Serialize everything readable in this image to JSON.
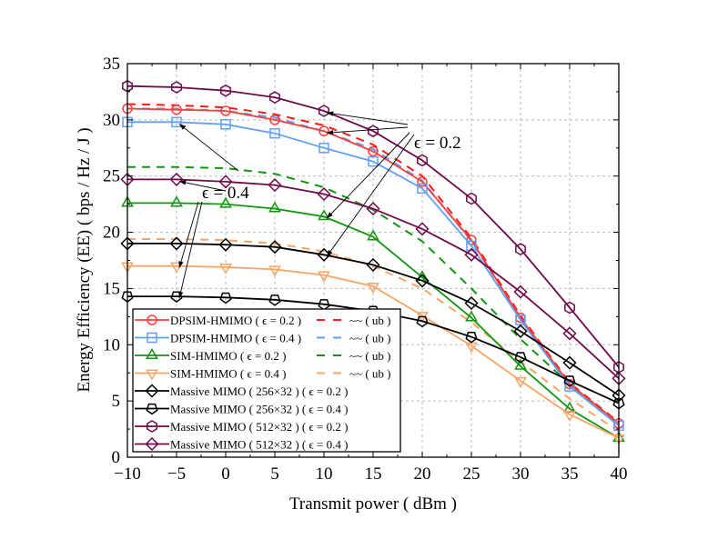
{
  "chart_data": {
    "type": "line",
    "xlabel": "Transmit power ( dBm )",
    "ylabel": "Energy Efficiency (EE) ( bps / Hz / J )",
    "xlim": [
      -10,
      40
    ],
    "ylim": [
      0,
      35
    ],
    "xticks": [
      -10,
      -5,
      0,
      5,
      10,
      15,
      20,
      25,
      30,
      35,
      40
    ],
    "yticks": [
      0,
      5,
      10,
      15,
      20,
      25,
      30,
      35
    ],
    "grid": true,
    "legend_position": "bottom-left",
    "x": [
      -10,
      -5,
      0,
      5,
      10,
      15,
      20,
      25,
      30,
      35,
      40
    ],
    "series": [
      {
        "name": "DPSIM-HMIMO ( ϵ = 0.2 )",
        "color": "#ff3b3b",
        "marker": "circle",
        "dash": false,
        "values": [
          31.0,
          30.9,
          30.8,
          30.0,
          29.0,
          27.2,
          24.5,
          19.3,
          12.4,
          6.5,
          3.0
        ]
      },
      {
        "name": "DPSIM-HMIMO ( ϵ = 0.4 )",
        "color": "#5fa0f5",
        "marker": "square",
        "dash": false,
        "values": [
          29.8,
          29.8,
          29.6,
          28.8,
          27.5,
          26.3,
          23.9,
          18.8,
          12.2,
          6.3,
          2.8
        ]
      },
      {
        "name": "SIM-HMIMO ( ϵ = 0.2 )",
        "color": "#12960f",
        "marker": "triangle-up",
        "dash": false,
        "values": [
          22.6,
          22.6,
          22.5,
          22.1,
          21.4,
          19.6,
          16.0,
          12.4,
          8.1,
          4.3,
          1.7
        ]
      },
      {
        "name": "SIM-HMIMO ( ϵ = 0.4 )",
        "color": "#f7a565",
        "marker": "triangle-down",
        "dash": false,
        "values": [
          17.0,
          17.0,
          16.9,
          16.7,
          16.2,
          15.2,
          12.6,
          9.9,
          6.8,
          3.8,
          1.7
        ]
      },
      {
        "name": "Massive MIMO ( 256×32 ) ( ϵ = 0.2 )",
        "color": "#000000",
        "marker": "diamond",
        "dash": false,
        "values": [
          19.0,
          19.0,
          18.9,
          18.7,
          18.0,
          17.1,
          15.7,
          13.7,
          11.2,
          8.4,
          5.5
        ]
      },
      {
        "name": "Massive MIMO ( 256×32 ) ( ϵ = 0.4 )",
        "color": "#000000",
        "marker": "pentagon",
        "dash": false,
        "values": [
          14.3,
          14.3,
          14.2,
          14.0,
          13.6,
          13.0,
          12.1,
          10.7,
          8.9,
          6.8,
          4.8
        ]
      },
      {
        "name": "Massive MIMO ( 512×32 ) ( ϵ = 0.2 )",
        "color": "#6e0a4a",
        "marker": "hexagon",
        "dash": false,
        "values": [
          33.0,
          32.9,
          32.6,
          32.0,
          30.8,
          29.0,
          26.4,
          23.0,
          18.5,
          13.3,
          8.0
        ]
      },
      {
        "name": "Massive MIMO ( 512×32 ) ( ϵ = 0.4 )",
        "color": "#6e0a4a",
        "marker": "diamond",
        "dash": false,
        "values": [
          24.7,
          24.7,
          24.5,
          24.2,
          23.4,
          22.1,
          20.3,
          18.0,
          14.7,
          11.0,
          7.0
        ]
      },
      {
        "name": "~~ ( ub )",
        "color": "#ff1a1a",
        "marker": "none",
        "dash": true,
        "values": [
          31.4,
          31.3,
          31.1,
          30.5,
          29.5,
          27.8,
          25.0,
          19.5,
          12.6,
          6.6,
          3.1
        ]
      },
      {
        "name": "~~ ( ub )",
        "color": "#5fa0f5",
        "marker": "none",
        "dash": true,
        "values": [
          31.0,
          31.0,
          30.8,
          30.2,
          29.0,
          27.4,
          24.6,
          19.2,
          12.4,
          6.4,
          2.9
        ]
      },
      {
        "name": "~~ ( ub )",
        "color": "#12960f",
        "marker": "none",
        "dash": true,
        "values": [
          25.8,
          25.8,
          25.7,
          25.2,
          24.0,
          22.0,
          19.2,
          15.0,
          10.5,
          6.5,
          3.0
        ]
      },
      {
        "name": "~~ ( ub )",
        "color": "#f7a565",
        "marker": "none",
        "dash": true,
        "values": [
          19.4,
          19.4,
          19.3,
          19.0,
          18.3,
          17.0,
          15.0,
          12.0,
          8.5,
          5.2,
          2.3
        ]
      }
    ],
    "annotations": [
      {
        "text": "ϵ = 0.2",
        "points_to": [
          [
            10,
            30.8
          ],
          [
            10,
            29.0
          ],
          [
            10,
            21.4
          ],
          [
            10,
            18.0
          ]
        ]
      },
      {
        "text": "ϵ = 0.4",
        "points_to": [
          [
            -5,
            29.8
          ],
          [
            -5,
            24.7
          ],
          [
            -5,
            17.0
          ],
          [
            -5,
            14.3
          ]
        ]
      }
    ]
  }
}
